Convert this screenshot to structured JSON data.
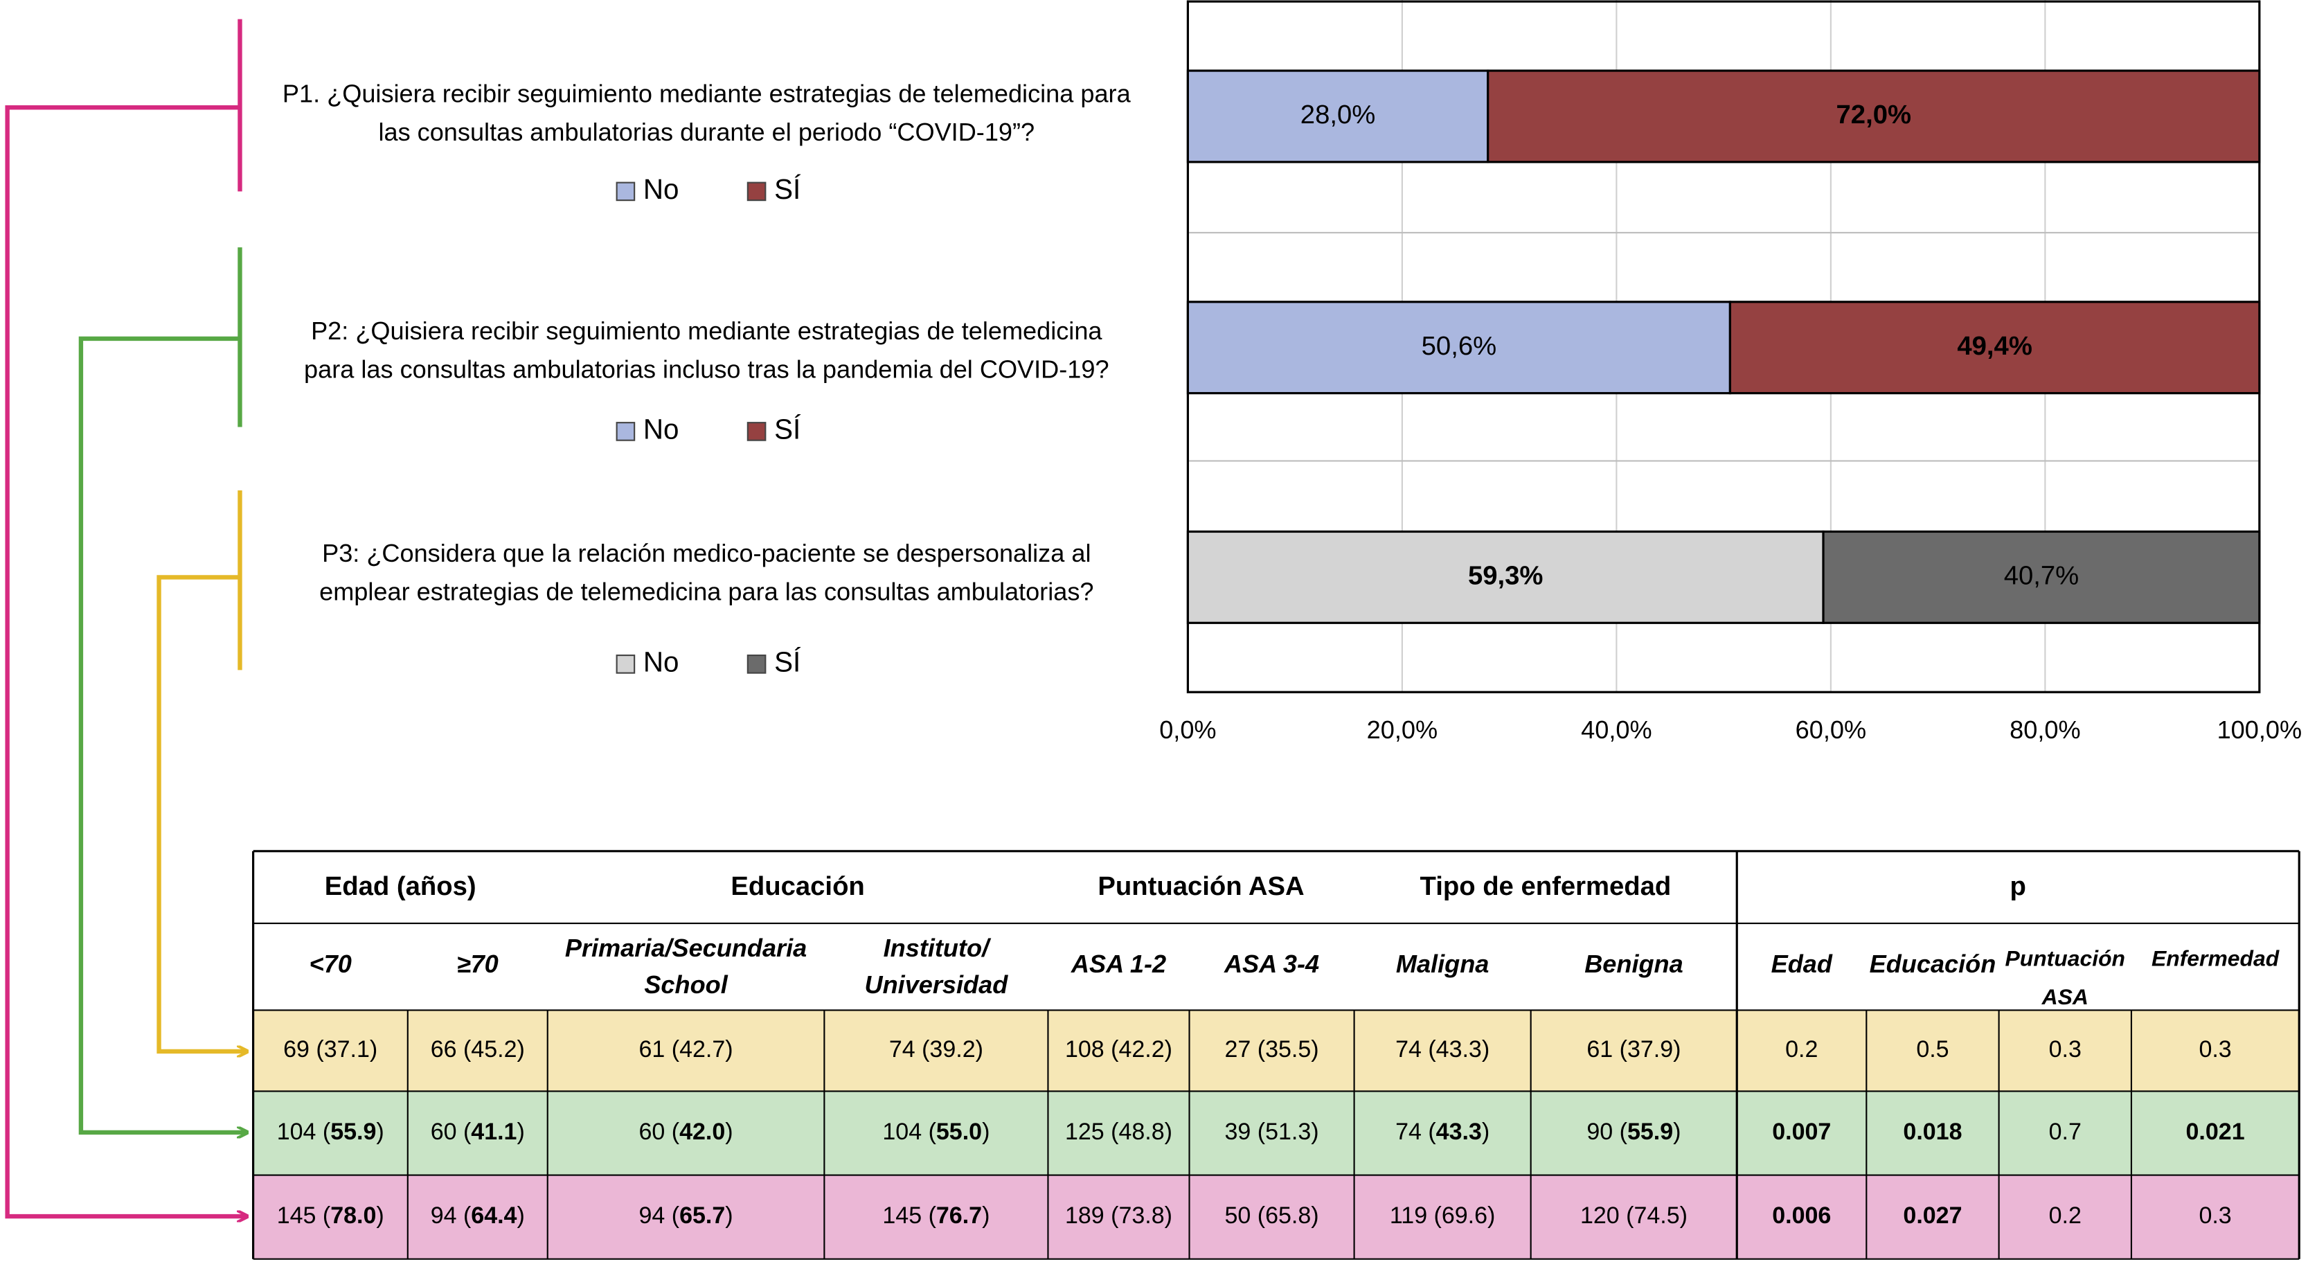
{
  "chart_data": {
    "type": "bar",
    "orientation": "horizontal",
    "stacked": true,
    "categories": [
      [
        "P1. ¿Quisiera recibir seguimiento mediante estrategias de telemedicina para",
        "las consultas ambulatorias durante el periodo “COVID-19”?"
      ],
      [
        "P2: ¿Quisiera recibir seguimiento mediante estrategias de telemedicina",
        "para las consultas ambulatorias incluso tras la pandemia del COVID-19?"
      ],
      [
        "P3: ¿Considera que la relación medico-paciente se despersonaliza al",
        "emplear estrategias de telemedicina para las consultas ambulatorias?"
      ]
    ],
    "series": [
      {
        "name": "No",
        "colors": [
          "#aab7df",
          "#aab7df",
          "#d4d4d4"
        ],
        "values": [
          28.0,
          50.6,
          59.3
        ],
        "value_labels": [
          "28,0%",
          "50,6%",
          "59,3%"
        ],
        "bold_labels": [
          false,
          false,
          true
        ]
      },
      {
        "name": "SÍ",
        "colors": [
          "#954141",
          "#954141",
          "#6b6b6b"
        ],
        "values": [
          72.0,
          49.4,
          40.7
        ],
        "value_labels": [
          "72,0%",
          "49,4%",
          "40,7%"
        ],
        "bold_labels": [
          true,
          true,
          false
        ]
      }
    ],
    "xlim": [
      0,
      100
    ],
    "xticks": [
      {
        "value": 0,
        "label": "0,0%"
      },
      {
        "value": 20,
        "label": "20,0%"
      },
      {
        "value": 40,
        "label": "40,0%"
      },
      {
        "value": 60,
        "label": "60,0%"
      },
      {
        "value": 80,
        "label": "80,0%"
      },
      {
        "value": 100,
        "label": "100,0%"
      }
    ],
    "grid": true
  },
  "table": {
    "groups": [
      {
        "label": "Edad (años)",
        "span": 2
      },
      {
        "label": "Educación",
        "span": 2
      },
      {
        "label": "Puntuación ASA",
        "span": 2
      },
      {
        "label": "Tipo de enfermedad",
        "span": 2
      },
      {
        "label": "p",
        "span": 4
      }
    ],
    "subheaders": [
      "<70",
      "≥70",
      [
        "Primaria/Secundaria",
        "School"
      ],
      [
        "Instituto/",
        "Universidad"
      ],
      "ASA 1-2",
      "ASA 3-4",
      "Maligna",
      "Benigna",
      "Edad",
      "Educación",
      [
        "Puntuación",
        "ASA"
      ],
      "Enfermedad"
    ],
    "row_colors": [
      "#f6e7b6",
      "#c9e4c6",
      "#ebb7d6"
    ],
    "rows": [
      [
        "69 (37.1)",
        "66 (45.2)",
        "61 (42.7)",
        "74 (39.2)",
        "108 (42.2)",
        "27 (35.5)",
        "74 (43.3)",
        "61 (37.9)",
        "0.2",
        "0.5",
        "0.3",
        "0.3"
      ],
      [
        [
          "104 (",
          {
            "text": "55.9",
            "bold": true
          },
          ")"
        ],
        [
          "60 (",
          {
            "text": "41.1",
            "bold": true
          },
          ")"
        ],
        [
          "60 (",
          {
            "text": "42.0",
            "bold": true
          },
          ")"
        ],
        [
          "104 (",
          {
            "text": "55.0",
            "bold": true
          },
          ")"
        ],
        "125 (48.8)",
        "39 (51.3)",
        [
          "74 (",
          {
            "text": "43.3",
            "bold": true
          },
          ")"
        ],
        [
          "90 (",
          {
            "text": "55.9",
            "bold": true
          },
          ")"
        ],
        [
          {
            "text": "0.007",
            "bold": true
          }
        ],
        [
          {
            "text": "0.018",
            "bold": true
          }
        ],
        "0.7",
        [
          {
            "text": "0.021",
            "bold": true
          }
        ]
      ],
      [
        [
          "145 (",
          {
            "text": "78.0",
            "bold": true
          },
          ")"
        ],
        [
          "94 (",
          {
            "text": "64.4",
            "bold": true
          },
          ")"
        ],
        [
          "94 (",
          {
            "text": "65.7",
            "bold": true
          },
          ")"
        ],
        [
          "145 (",
          {
            "text": "76.7",
            "bold": true
          },
          ")"
        ],
        "189 (73.8)",
        "50 (65.8)",
        "119 (69.6)",
        "120 (74.5)",
        [
          {
            "text": "0.006",
            "bold": true
          }
        ],
        [
          {
            "text": "0.027",
            "bold": true
          }
        ],
        "0.2",
        "0.3"
      ]
    ]
  }
}
